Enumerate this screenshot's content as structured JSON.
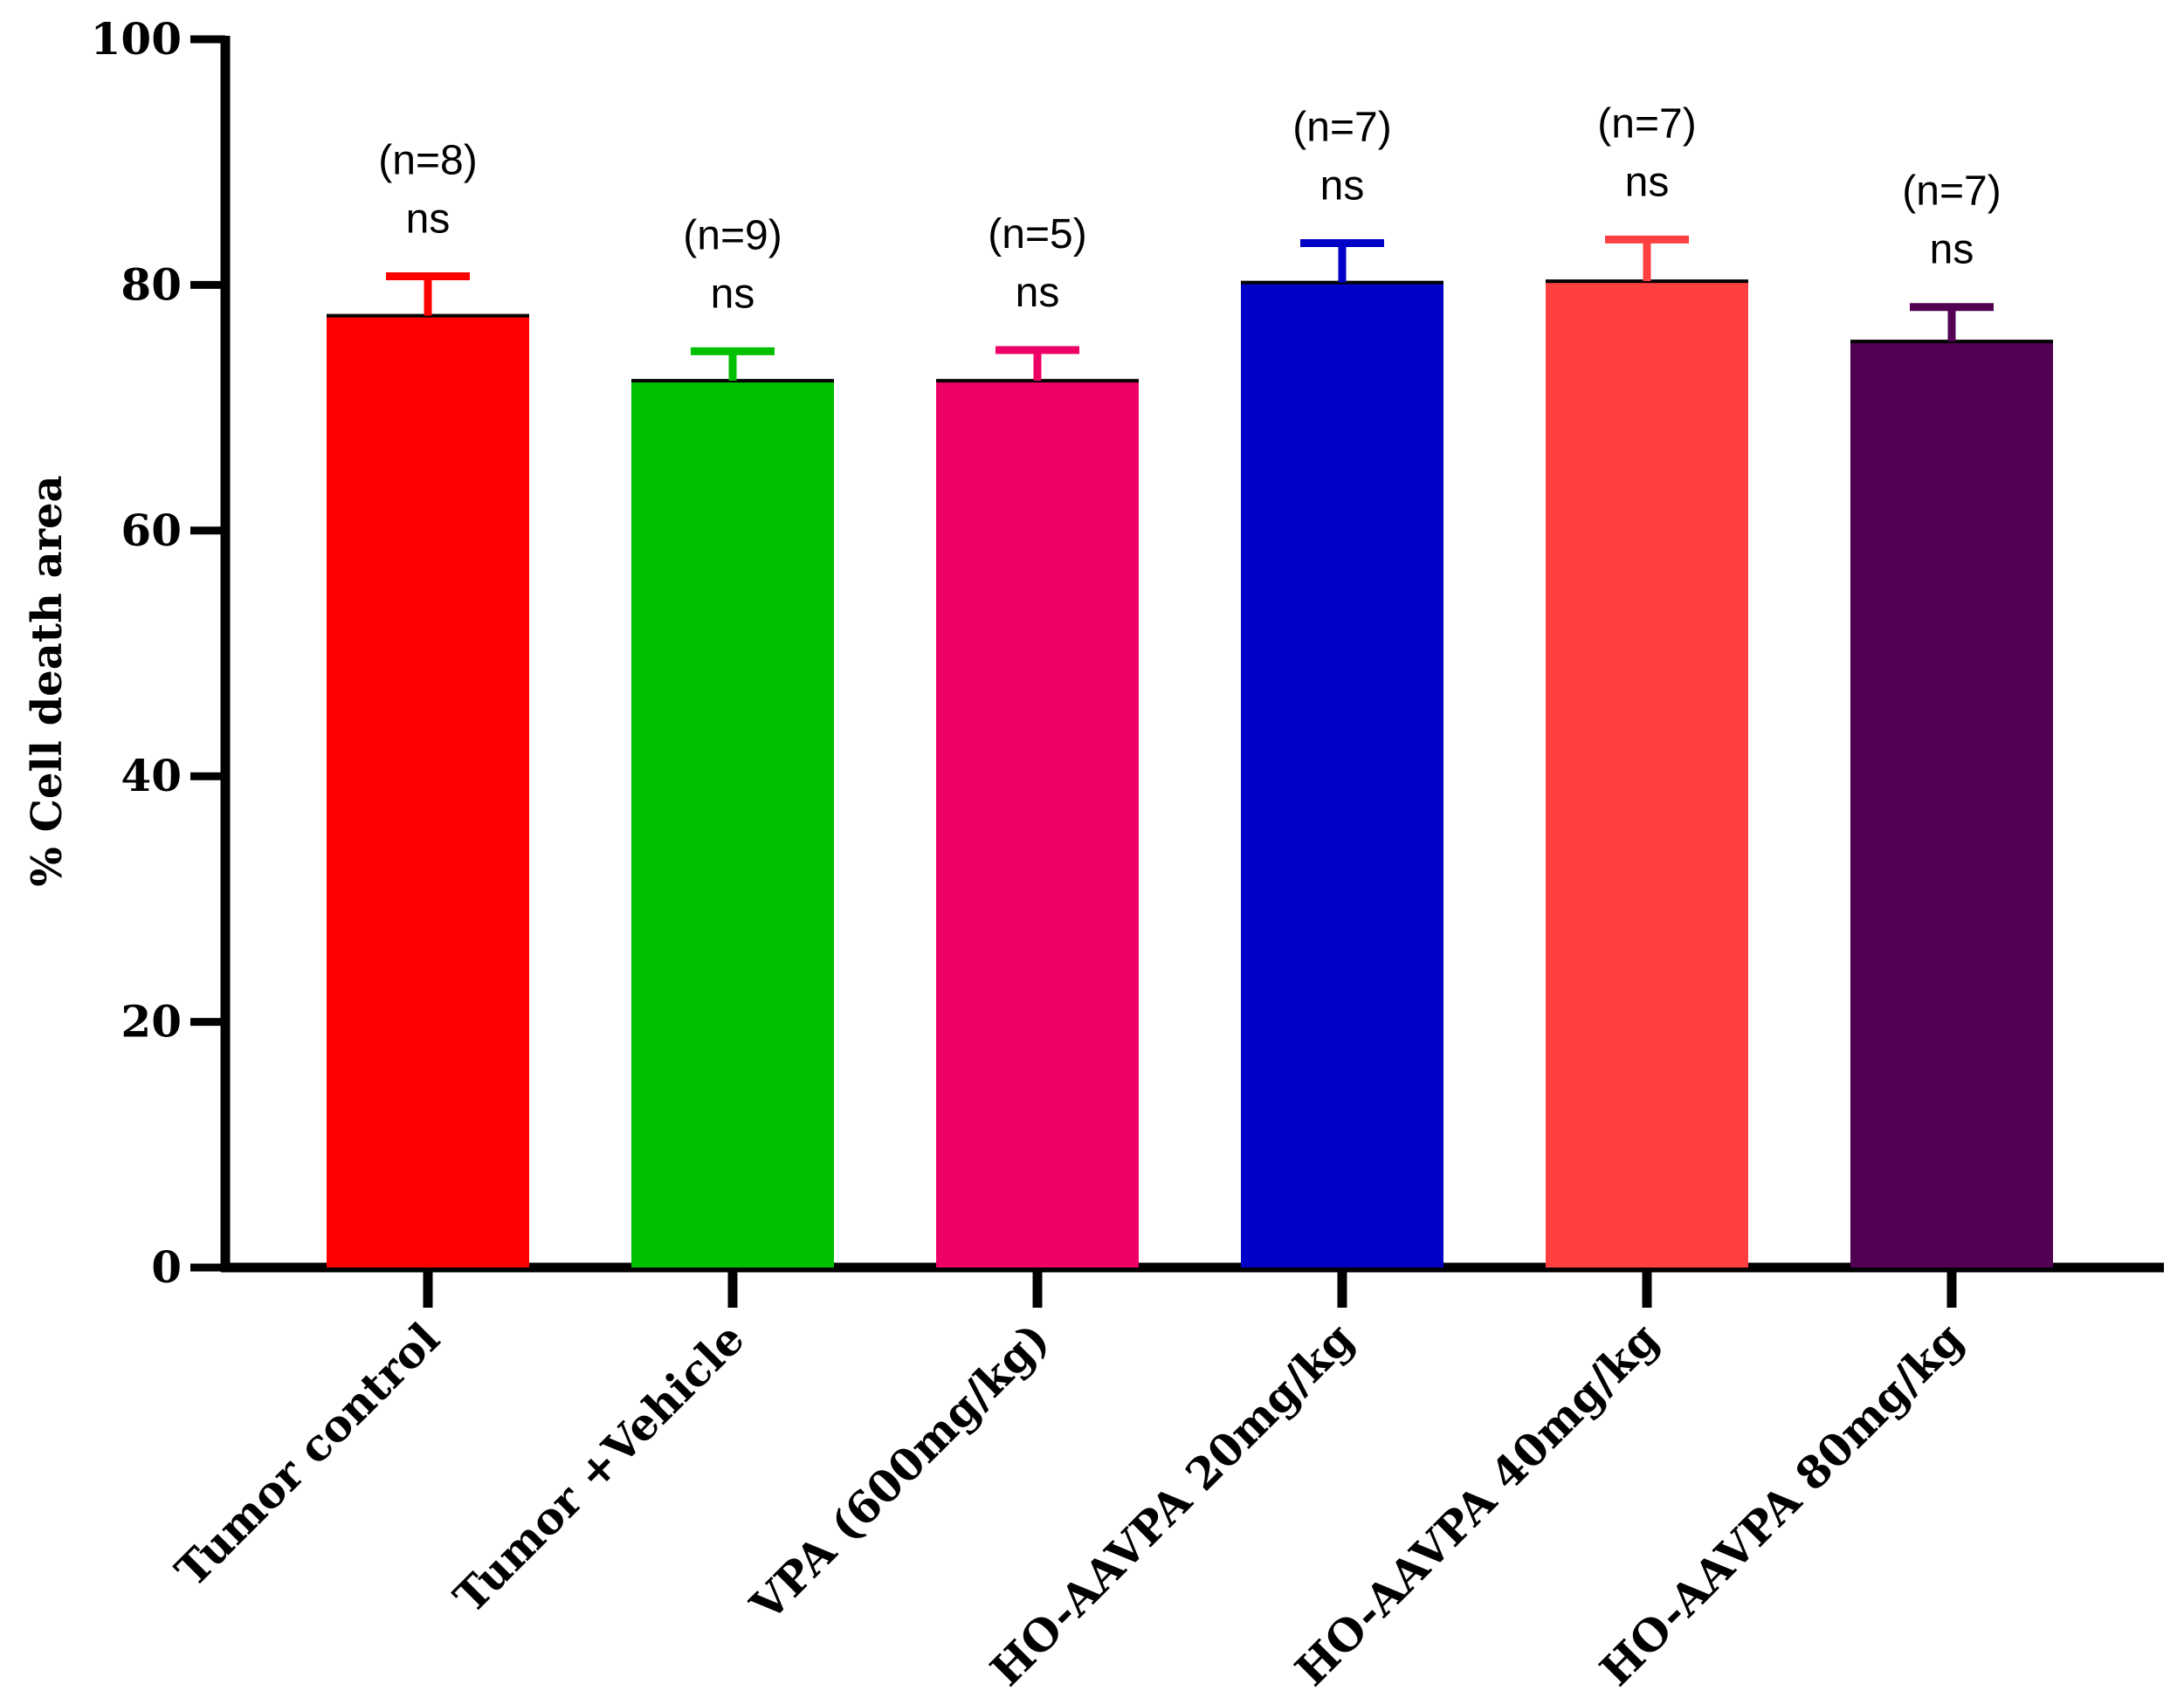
{
  "chart_data": {
    "type": "bar",
    "title": "",
    "xlabel": "",
    "ylabel": "% Cell death area",
    "ylim": [
      0,
      100
    ],
    "yticks": [
      0,
      20,
      40,
      60,
      80,
      100
    ],
    "grid": false,
    "legend": "none",
    "categories": [
      "Tumor control",
      "Tumor +Vehicle",
      "VPA (600mg/kg)",
      "HO-AAVPA 20mg/kg",
      "HO-AAVPA 40mg/kg",
      "HO-AAVPA 80mg/kg"
    ],
    "values": [
      77.5,
      72.2,
      72.2,
      80.2,
      80.3,
      75.4
    ],
    "errors": [
      3.2,
      2.4,
      2.5,
      3.2,
      3.4,
      2.8
    ],
    "n_labels": [
      "(n=8)",
      "(n=9)",
      "(n=5)",
      "(n=7)",
      "(n=7)",
      "(n=7)"
    ],
    "significance": [
      "ns",
      "ns",
      "ns",
      "ns",
      "ns",
      "ns"
    ],
    "colors": [
      "#ff0000",
      "#00c000",
      "#ee0066",
      "#0000c6",
      "#ff4040",
      "#520052"
    ]
  }
}
